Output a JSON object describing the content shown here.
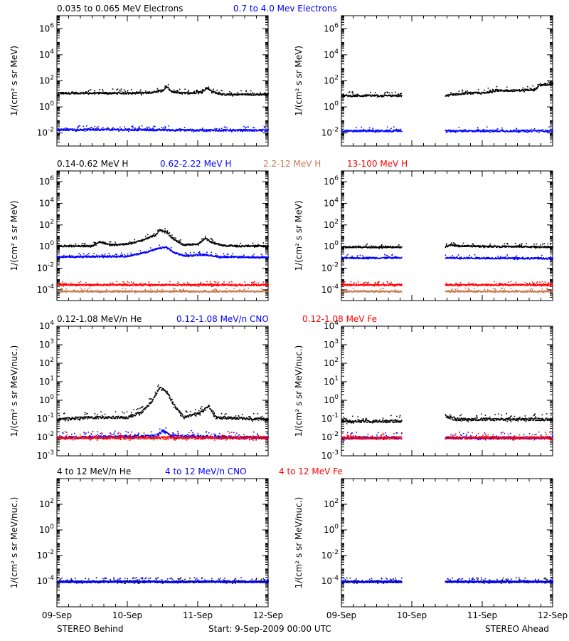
{
  "colors": {
    "black": "#000000",
    "blue": "#0000ff",
    "red": "#ff0000",
    "tan": "#c87850"
  },
  "x_ticks": [
    "09-Sep",
    "10-Sep",
    "11-Sep",
    "12-Sep"
  ],
  "footer": {
    "left": "STEREO Behind",
    "center": "Start:  9-Sep-2009 00:00 UTC",
    "right": "STEREO Ahead"
  },
  "chart_data": [
    {
      "type": "scatter",
      "legend": [
        {
          "text": "0.035 to 0.065 MeV Electrons",
          "color": "#000000"
        },
        {
          "text": "0.7 to 4.0 Mev Electrons",
          "color": "#0000ff"
        }
      ],
      "ylabel": "1/(cm² s sr MeV)",
      "y_log": true,
      "ylim": [
        -3,
        7
      ],
      "y_ticks": [
        {
          "p": 6,
          "label": "10^6"
        },
        {
          "p": 4,
          "label": "10^4"
        },
        {
          "p": 2,
          "label": "10^2"
        },
        {
          "p": 0,
          "label": "10^0"
        },
        {
          "p": -2,
          "label": "10^-2"
        }
      ],
      "xlim": [
        "09-Sep",
        "12-Sep"
      ],
      "panels": [
        {
          "name": "STEREO Behind",
          "series": [
            {
              "color": "#000000",
              "description": "Electrons 0.035-0.065 MeV",
              "points": [
                [
                  0.0,
                  1.1
                ],
                [
                  0.5,
                  1.1
                ],
                [
                  1.0,
                  1.1
                ],
                [
                  1.2,
                  1.1
                ],
                [
                  1.4,
                  1.2
                ],
                [
                  1.5,
                  1.3
                ],
                [
                  1.55,
                  1.6
                ],
                [
                  1.62,
                  1.2
                ],
                [
                  1.75,
                  1.1
                ],
                [
                  1.9,
                  1.1
                ],
                [
                  2.05,
                  1.2
                ],
                [
                  2.12,
                  1.5
                ],
                [
                  2.2,
                  1.2
                ],
                [
                  2.35,
                  1.0
                ],
                [
                  2.6,
                  1.0
                ],
                [
                  3.0,
                  1.0
                ]
              ]
            },
            {
              "color": "#0000ff",
              "description": "Electrons 0.7-4.0 MeV",
              "points": [
                [
                  0.0,
                  -1.7
                ],
                [
                  1.0,
                  -1.7
                ],
                [
                  2.0,
                  -1.75
                ],
                [
                  3.0,
                  -1.75
                ]
              ]
            }
          ]
        },
        {
          "name": "STEREO Ahead",
          "series": [
            {
              "color": "#000000",
              "description": "Electrons 0.035-0.065 MeV",
              "gap": [
                0.85,
                1.47
              ],
              "points": [
                [
                  0.0,
                  0.9
                ],
                [
                  0.85,
                  0.9
                ],
                [
                  1.47,
                  0.9
                ],
                [
                  1.6,
                  1.0
                ],
                [
                  1.8,
                  1.1
                ],
                [
                  2.0,
                  1.1
                ],
                [
                  2.2,
                  1.3
                ],
                [
                  2.5,
                  1.3
                ],
                [
                  2.75,
                  1.4
                ],
                [
                  2.8,
                  1.7
                ],
                [
                  3.0,
                  1.8
                ]
              ]
            },
            {
              "color": "#0000ff",
              "description": "Electrons 0.7-4.0 MeV",
              "gap": [
                0.85,
                1.47
              ],
              "points": [
                [
                  0.0,
                  -1.8
                ],
                [
                  0.85,
                  -1.8
                ],
                [
                  1.47,
                  -1.8
                ],
                [
                  3.0,
                  -1.8
                ]
              ]
            }
          ]
        }
      ]
    },
    {
      "type": "scatter",
      "legend": [
        {
          "text": "0.14-0.62 MeV H",
          "color": "#000000"
        },
        {
          "text": "0.62-2.22 MeV H",
          "color": "#0000ff"
        },
        {
          "text": "2.2-12 MeV H",
          "color": "#c87850"
        },
        {
          "text": "13-100 MeV H",
          "color": "#ff0000"
        }
      ],
      "ylabel": "1/(cm² s sr MeV)",
      "y_log": true,
      "ylim": [
        -5,
        7
      ],
      "y_ticks": [
        {
          "p": 6,
          "label": "10^6"
        },
        {
          "p": 4,
          "label": "10^4"
        },
        {
          "p": 2,
          "label": "10^2"
        },
        {
          "p": 0,
          "label": "10^0"
        },
        {
          "p": -2,
          "label": "10^-2"
        },
        {
          "p": -4,
          "label": "10^-4"
        }
      ],
      "xlim": [
        "09-Sep",
        "12-Sep"
      ],
      "panels": [
        {
          "name": "STEREO Behind",
          "series": [
            {
              "color": "#000000",
              "description": "H 0.14-0.62 MeV",
              "points": [
                [
                  0.0,
                  0.1
                ],
                [
                  0.5,
                  0.1
                ],
                [
                  0.6,
                  0.5
                ],
                [
                  0.75,
                  0.2
                ],
                [
                  1.0,
                  0.3
                ],
                [
                  1.2,
                  0.6
                ],
                [
                  1.3,
                  0.9
                ],
                [
                  1.4,
                  1.1
                ],
                [
                  1.45,
                  1.6
                ],
                [
                  1.55,
                  1.4
                ],
                [
                  1.6,
                  1.0
                ],
                [
                  1.7,
                  0.5
                ],
                [
                  1.8,
                  0.2
                ],
                [
                  2.0,
                  0.3
                ],
                [
                  2.1,
                  0.8
                ],
                [
                  2.2,
                  0.4
                ],
                [
                  2.4,
                  0.1
                ],
                [
                  3.0,
                  0.1
                ]
              ]
            },
            {
              "color": "#0000ff",
              "description": "H 0.62-2.22 MeV",
              "points": [
                [
                  0.0,
                  -0.9
                ],
                [
                  1.0,
                  -0.85
                ],
                [
                  1.3,
                  -0.4
                ],
                [
                  1.45,
                  -0.1
                ],
                [
                  1.55,
                  0.0
                ],
                [
                  1.65,
                  -0.5
                ],
                [
                  1.8,
                  -0.8
                ],
                [
                  2.1,
                  -0.7
                ],
                [
                  2.3,
                  -0.9
                ],
                [
                  3.0,
                  -0.95
                ]
              ]
            },
            {
              "color": "#c87850",
              "description": "H 2.2-12 MeV",
              "points": [
                [
                  0.0,
                  -4.1
                ],
                [
                  3.0,
                  -4.1
                ]
              ]
            },
            {
              "color": "#ff0000",
              "description": "H 13-100 MeV",
              "points": [
                [
                  0.0,
                  -3.5
                ],
                [
                  3.0,
                  -3.5
                ]
              ]
            }
          ]
        },
        {
          "name": "STEREO Ahead",
          "series": [
            {
              "color": "#000000",
              "description": "H 0.14-0.62 MeV",
              "gap": [
                0.85,
                1.47
              ],
              "points": [
                [
                  0.0,
                  0.0
                ],
                [
                  0.85,
                  0.0
                ],
                [
                  1.47,
                  0.0
                ],
                [
                  1.55,
                  0.2
                ],
                [
                  1.65,
                  0.1
                ],
                [
                  3.0,
                  0.0
                ]
              ]
            },
            {
              "color": "#0000ff",
              "description": "H 0.62-2.22 MeV",
              "gap": [
                0.85,
                1.47
              ],
              "points": [
                [
                  0.0,
                  -1.0
                ],
                [
                  0.85,
                  -1.0
                ],
                [
                  1.47,
                  -1.0
                ],
                [
                  3.0,
                  -1.05
                ]
              ]
            },
            {
              "color": "#c87850",
              "description": "H 2.2-12 MeV",
              "gap": [
                0.85,
                1.47
              ],
              "points": [
                [
                  0.0,
                  -4.1
                ],
                [
                  0.85,
                  -4.1
                ],
                [
                  1.47,
                  -4.1
                ],
                [
                  3.0,
                  -4.1
                ]
              ]
            },
            {
              "color": "#ff0000",
              "description": "H 13-100 MeV",
              "gap": [
                0.85,
                1.47
              ],
              "points": [
                [
                  0.0,
                  -3.5
                ],
                [
                  0.85,
                  -3.5
                ],
                [
                  1.47,
                  -3.5
                ],
                [
                  3.0,
                  -3.5
                ]
              ]
            }
          ]
        }
      ]
    },
    {
      "type": "scatter",
      "legend": [
        {
          "text": "0.12-1.08 MeV/n He",
          "color": "#000000"
        },
        {
          "text": "0.12-1.08 MeV/n CNO",
          "color": "#0000ff"
        },
        {
          "text": "0.12-1.08 MeV Fe",
          "color": "#ff0000"
        }
      ],
      "ylabel": "1/(cm² s sr MeV/nuc.)",
      "y_log": true,
      "ylim": [
        -3,
        4
      ],
      "y_ticks": [
        {
          "p": 4,
          "label": "10^4"
        },
        {
          "p": 3,
          "label": "10^3"
        },
        {
          "p": 2,
          "label": "10^2"
        },
        {
          "p": 1,
          "label": "10^1"
        },
        {
          "p": 0,
          "label": "10^0"
        },
        {
          "p": -1,
          "label": "10^-1"
        },
        {
          "p": -2,
          "label": "10^-2"
        },
        {
          "p": -3,
          "label": "10^-3"
        }
      ],
      "xlim": [
        "09-Sep",
        "12-Sep"
      ],
      "panels": [
        {
          "name": "STEREO Behind",
          "series": [
            {
              "color": "#000000",
              "description": "He 0.12-1.08 MeV/n",
              "points": [
                [
                  0.0,
                  -1.0
                ],
                [
                  0.5,
                  -0.9
                ],
                [
                  1.0,
                  -0.9
                ],
                [
                  1.2,
                  -0.6
                ],
                [
                  1.35,
                  0.0
                ],
                [
                  1.45,
                  0.7
                ],
                [
                  1.55,
                  0.5
                ],
                [
                  1.65,
                  -0.2
                ],
                [
                  1.8,
                  -0.9
                ],
                [
                  2.05,
                  -0.6
                ],
                [
                  2.15,
                  -0.3
                ],
                [
                  2.25,
                  -0.9
                ],
                [
                  3.0,
                  -1.0
                ]
              ]
            },
            {
              "color": "#0000ff",
              "description": "CNO 0.12-1.08 MeV/n",
              "points": [
                [
                  0.0,
                  -2.0
                ],
                [
                  1.4,
                  -1.9
                ],
                [
                  1.5,
                  -1.6
                ],
                [
                  1.6,
                  -1.9
                ],
                [
                  3.0,
                  -2.0
                ]
              ]
            },
            {
              "color": "#ff0000",
              "description": "Fe 0.12-1.08 MeV",
              "points": [
                [
                  0.0,
                  -2.0
                ],
                [
                  3.0,
                  -2.0
                ]
              ]
            }
          ]
        },
        {
          "name": "STEREO Ahead",
          "series": [
            {
              "color": "#000000",
              "description": "He 0.12-1.08 MeV/n",
              "gap": [
                0.85,
                1.47
              ],
              "points": [
                [
                  0.0,
                  -1.1
                ],
                [
                  0.85,
                  -1.1
                ],
                [
                  1.47,
                  -0.8
                ],
                [
                  1.6,
                  -1.0
                ],
                [
                  3.0,
                  -1.0
                ]
              ]
            },
            {
              "color": "#0000ff",
              "description": "CNO 0.12-1.08 MeV/n",
              "gap": [
                0.85,
                1.47
              ],
              "points": [
                [
                  0.0,
                  -2.0
                ],
                [
                  0.85,
                  -2.0
                ],
                [
                  1.47,
                  -2.0
                ],
                [
                  3.0,
                  -2.0
                ]
              ]
            },
            {
              "color": "#ff0000",
              "description": "Fe 0.12-1.08 MeV",
              "gap": [
                0.85,
                1.47
              ],
              "points": [
                [
                  0.0,
                  -2.0
                ],
                [
                  0.85,
                  -2.0
                ],
                [
                  1.47,
                  -2.0
                ],
                [
                  3.0,
                  -2.0
                ]
              ]
            }
          ]
        }
      ]
    },
    {
      "type": "scatter",
      "legend": [
        {
          "text": "4 to 12 MeV/n He",
          "color": "#000000"
        },
        {
          "text": "4 to 12 MeV/n CNO",
          "color": "#0000ff"
        },
        {
          "text": "4 to 12 MeV Fe",
          "color": "#ff0000"
        }
      ],
      "ylabel": "1/(cm² s sr MeV/nuc.)",
      "y_log": true,
      "ylim": [
        -6,
        4
      ],
      "y_ticks": [
        {
          "p": 2,
          "label": "10^2"
        },
        {
          "p": 0,
          "label": "10^0"
        },
        {
          "p": -2,
          "label": "10^-2"
        },
        {
          "p": -4,
          "label": "10^-4"
        }
      ],
      "xlim": [
        "09-Sep",
        "12-Sep"
      ],
      "panels": [
        {
          "name": "STEREO Behind",
          "series": [
            {
              "color": "#000000",
              "description": "He 4-12 MeV/n",
              "points": [
                [
                  0.0,
                  -4.0
                ],
                [
                  3.0,
                  -4.0
                ]
              ]
            },
            {
              "color": "#0000ff",
              "description": "CNO 4-12 MeV/n",
              "points": [
                [
                  0.0,
                  -4.0
                ],
                [
                  3.0,
                  -4.0
                ]
              ]
            }
          ]
        },
        {
          "name": "STEREO Ahead",
          "series": [
            {
              "color": "#000000",
              "description": "He 4-12 MeV/n",
              "gap": [
                0.85,
                1.47
              ],
              "points": [
                [
                  0.0,
                  -4.0
                ],
                [
                  0.85,
                  -4.0
                ],
                [
                  1.47,
                  -4.0
                ],
                [
                  3.0,
                  -4.0
                ]
              ]
            },
            {
              "color": "#0000ff",
              "description": "CNO 4-12 MeV/n",
              "gap": [
                0.85,
                1.47
              ],
              "points": [
                [
                  0.0,
                  -4.0
                ],
                [
                  0.85,
                  -4.0
                ],
                [
                  1.47,
                  -4.0
                ],
                [
                  3.0,
                  -4.0
                ]
              ]
            }
          ]
        }
      ]
    }
  ]
}
